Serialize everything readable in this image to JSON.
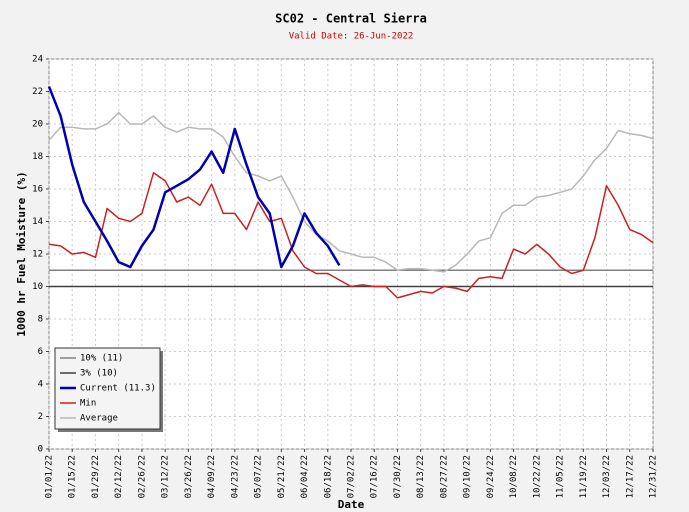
{
  "chart_data": {
    "type": "line",
    "title": "SC02 - Central Sierra",
    "subtitle": "Valid Date: 26-Jun-2022",
    "xlabel": "Date",
    "ylabel": "1000 hr Fuel Moisture (%)",
    "x": [
      "01/01/22",
      "01/08/22",
      "01/15/22",
      "01/22/22",
      "01/29/22",
      "02/05/22",
      "02/12/22",
      "02/19/22",
      "02/26/22",
      "03/05/22",
      "03/12/22",
      "03/19/22",
      "03/26/22",
      "04/02/22",
      "04/09/22",
      "04/16/22",
      "04/23/22",
      "04/30/22",
      "05/07/22",
      "05/14/22",
      "05/21/22",
      "05/28/22",
      "06/04/22",
      "06/11/22",
      "06/18/22",
      "06/25/22",
      "07/02/22",
      "07/09/22",
      "07/16/22",
      "07/23/22",
      "07/30/22",
      "08/06/22",
      "08/13/22",
      "08/20/22",
      "08/27/22",
      "09/03/22",
      "09/10/22",
      "09/17/22",
      "09/24/22",
      "10/01/22",
      "10/08/22",
      "10/15/22",
      "10/22/22",
      "10/29/22",
      "11/05/22",
      "11/12/22",
      "11/19/22",
      "11/26/22",
      "12/03/22",
      "12/10/22",
      "12/17/22",
      "12/24/22",
      "12/31/22"
    ],
    "xticks": [
      "01/01/22",
      "01/15/22",
      "01/29/22",
      "02/12/22",
      "02/26/22",
      "03/12/22",
      "03/26/22",
      "04/09/22",
      "04/23/22",
      "05/07/22",
      "05/21/22",
      "06/04/22",
      "06/18/22",
      "07/02/22",
      "07/16/22",
      "07/30/22",
      "08/13/22",
      "08/27/22",
      "09/10/22",
      "09/24/22",
      "10/08/22",
      "10/22/22",
      "11/05/22",
      "11/19/22",
      "12/03/22",
      "12/17/22",
      "12/31/22"
    ],
    "ylim": [
      0,
      24
    ],
    "yticks": [
      0,
      2,
      4,
      6,
      8,
      10,
      12,
      14,
      16,
      18,
      20,
      22,
      24
    ],
    "grid": true,
    "legend": "lower left",
    "reference_lines": [
      {
        "name": "10% (11)",
        "color": "#808080",
        "value": 11
      },
      {
        "name": "3% (10)",
        "color": "#404040",
        "value": 10
      }
    ],
    "series": [
      {
        "name": "Current (11.3)",
        "color": "#0000b0",
        "width": 2.5,
        "values": [
          22.3,
          20.5,
          17.5,
          15.2,
          14,
          12.8,
          11.5,
          11.2,
          12.5,
          13.5,
          15.8,
          16.2,
          16.6,
          17.2,
          18.3,
          17,
          19.7,
          17.5,
          15.5,
          14.5,
          11.2,
          12.5,
          14.5,
          13.3,
          12.5,
          11.3,
          null,
          null,
          null,
          null,
          null,
          null,
          null,
          null,
          null,
          null,
          null,
          null,
          null,
          null,
          null,
          null,
          null,
          null,
          null,
          null,
          null,
          null,
          null,
          null,
          null,
          null,
          null
        ]
      },
      {
        "name": "Min",
        "color": "#cc2020",
        "width": 1.5,
        "values": [
          12.6,
          12.5,
          12,
          12.1,
          11.8,
          14.8,
          14.2,
          14,
          14.5,
          17,
          16.5,
          15.2,
          15.5,
          15,
          16.3,
          14.5,
          14.5,
          13.5,
          15.2,
          14,
          14.2,
          12.2,
          11.2,
          10.8,
          10.8,
          10.4,
          10,
          10.1,
          10,
          10,
          9.3,
          9.5,
          9.7,
          9.6,
          10,
          9.9,
          9.7,
          10.5,
          10.6,
          10.5,
          12.3,
          12,
          12.6,
          12,
          11.2,
          10.8,
          11,
          13,
          16.2,
          15,
          13.5,
          13.2,
          12.7
        ]
      },
      {
        "name": "Average",
        "color": "#b8b8b8",
        "width": 1.5,
        "values": [
          19,
          19.8,
          19.8,
          19.7,
          19.7,
          20,
          20.7,
          20,
          20,
          20.5,
          19.8,
          19.5,
          19.8,
          19.7,
          19.7,
          19.2,
          18,
          17,
          16.8,
          16.5,
          16.8,
          15.5,
          14,
          13.2,
          12.8,
          12.2,
          12,
          11.8,
          11.8,
          11.5,
          11,
          11.1,
          11.1,
          11,
          10.9,
          11.3,
          12,
          12.8,
          13,
          14.5,
          15,
          15,
          15.5,
          15.6,
          15.8,
          16,
          16.8,
          17.8,
          18.5,
          19.6,
          19.4,
          19.3,
          19.1
        ]
      }
    ]
  }
}
